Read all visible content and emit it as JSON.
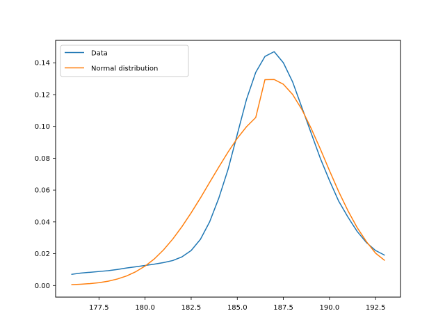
{
  "chart_data": {
    "type": "line",
    "title": "",
    "xlabel": "",
    "ylabel": "",
    "xlim": [
      175.15,
      193.85
    ],
    "ylim": [
      -0.0073,
      0.1541
    ],
    "xticks": [
      177.5,
      180.0,
      182.5,
      185.0,
      187.5,
      190.0,
      192.5
    ],
    "xtick_labels": [
      "177.5",
      "180.0",
      "182.5",
      "185.0",
      "187.5",
      "190.0",
      "192.5"
    ],
    "yticks": [
      0.0,
      0.02,
      0.04,
      0.06,
      0.08,
      0.1,
      0.12,
      0.14
    ],
    "ytick_labels": [
      "0.00",
      "0.02",
      "0.04",
      "0.06",
      "0.08",
      "0.10",
      "0.12",
      "0.14"
    ],
    "grid": false,
    "legend": "top-left",
    "series": [
      {
        "name": "Data",
        "color": "#1f77b4",
        "x": [
          176.0,
          176.5,
          177.0,
          177.5,
          178.0,
          178.5,
          179.0,
          179.5,
          180.0,
          180.5,
          181.0,
          181.5,
          182.0,
          182.5,
          183.0,
          183.5,
          184.0,
          184.5,
          185.0,
          185.5,
          186.0,
          186.5,
          187.0,
          187.5,
          188.0,
          188.5,
          189.0,
          189.5,
          190.0,
          190.5,
          191.0,
          191.5,
          192.0,
          192.5,
          193.0
        ],
        "y": [
          0.007,
          0.0078,
          0.0083,
          0.0088,
          0.0093,
          0.0101,
          0.011,
          0.0118,
          0.0126,
          0.0134,
          0.0144,
          0.0157,
          0.018,
          0.022,
          0.029,
          0.04,
          0.055,
          0.073,
          0.095,
          0.117,
          0.134,
          0.144,
          0.147,
          0.14,
          0.128,
          0.112,
          0.096,
          0.08,
          0.066,
          0.053,
          0.043,
          0.034,
          0.027,
          0.022,
          0.019
        ]
      },
      {
        "name": "Normal distribution",
        "color": "#ff7f0e",
        "x": [
          176.0,
          176.5,
          177.0,
          177.5,
          178.0,
          178.5,
          179.0,
          179.5,
          180.0,
          180.5,
          181.0,
          181.5,
          182.0,
          182.5,
          183.0,
          183.5,
          184.0,
          184.5,
          185.0,
          185.5,
          186.0,
          186.5,
          187.0,
          187.5,
          188.0,
          188.5,
          189.0,
          189.5,
          190.0,
          190.5,
          191.0,
          191.5,
          192.0,
          192.5,
          193.0
        ],
        "y": [
          0.0005,
          0.0008,
          0.0012,
          0.0018,
          0.0027,
          0.0041,
          0.006,
          0.0087,
          0.0122,
          0.0167,
          0.0224,
          0.0292,
          0.037,
          0.0457,
          0.055,
          0.0648,
          0.0745,
          0.0839,
          0.0925,
          0.0998,
          0.1056,
          0.1294,
          0.1295,
          0.1265,
          0.1201,
          0.1107,
          0.0989,
          0.0859,
          0.0722,
          0.059,
          0.047,
          0.0364,
          0.0276,
          0.0203,
          0.0157
        ]
      }
    ]
  }
}
